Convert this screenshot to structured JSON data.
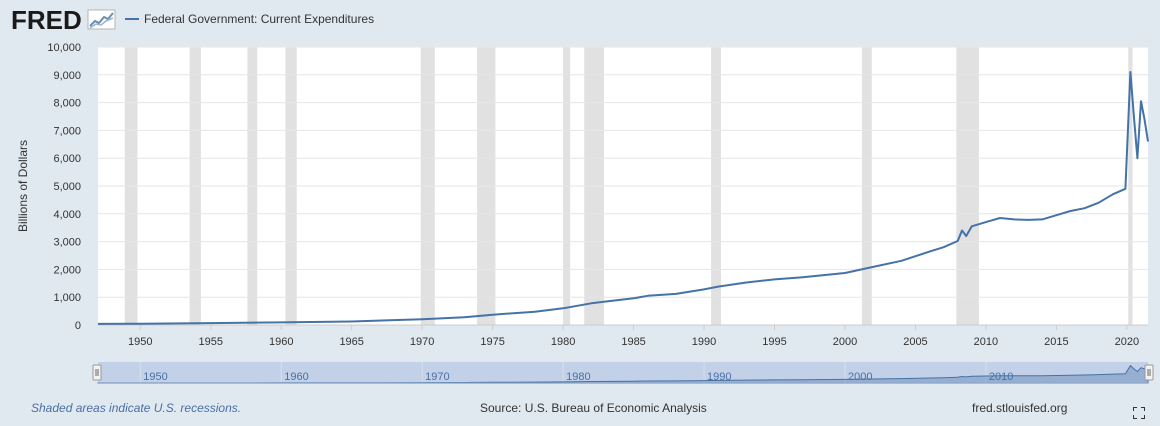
{
  "brand": {
    "logo_text": "FRED"
  },
  "colors": {
    "background": "#e1e9f0",
    "plot_background": "#ffffff",
    "series_line": "#4572a7",
    "recession_shade": "#e1e1e1",
    "navigator_fill": "#c2d0e8",
    "logo": "#1a1a1a"
  },
  "footer": {
    "note": "Shaded areas indicate U.S. recessions.",
    "source": "Source: U.S. Bureau of Economic Analysis",
    "site": "fred.stlouisfed.org"
  },
  "icons": {
    "fullscreen": "expand-arrows-icon",
    "logo_graph": "line-graph-icon"
  },
  "chart_data": {
    "type": "line",
    "title": "",
    "ylabel": "Billions of Dollars",
    "xlabel": "",
    "xlim": [
      1947,
      2021.5
    ],
    "ylim": [
      0,
      10000
    ],
    "grid": true,
    "legend_position": "top-left",
    "y_ticks": [
      "0",
      "1,000",
      "2,000",
      "3,000",
      "4,000",
      "5,000",
      "6,000",
      "7,000",
      "8,000",
      "9,000",
      "10,000"
    ],
    "x_ticks": [
      "1950",
      "1955",
      "1960",
      "1965",
      "1970",
      "1975",
      "1980",
      "1985",
      "1990",
      "1995",
      "2000",
      "2005",
      "2010",
      "2015",
      "2020"
    ],
    "navigator_ticks": [
      "1950",
      "1960",
      "1970",
      "1980",
      "1990",
      "2000",
      "2010"
    ],
    "recessions": [
      [
        1948.9,
        1949.8
      ],
      [
        1953.5,
        1954.3
      ],
      [
        1957.6,
        1958.3
      ],
      [
        1960.3,
        1961.1
      ],
      [
        1969.9,
        1970.9
      ],
      [
        1973.9,
        1975.2
      ],
      [
        1980.0,
        1980.5
      ],
      [
        1981.5,
        1982.9
      ],
      [
        1990.5,
        1991.2
      ],
      [
        2001.2,
        2001.9
      ],
      [
        2007.9,
        2009.5
      ],
      [
        2020.1,
        2020.4
      ]
    ],
    "series": [
      {
        "name": "Federal Government: Current Expenditures",
        "x": [
          1947,
          1950,
          1955,
          1960,
          1965,
          1970,
          1973,
          1975,
          1978,
          1980,
          1982,
          1985,
          1986,
          1988,
          1990,
          1991,
          1993,
          1995,
          1997,
          2000,
          2002,
          2004,
          2006,
          2007,
          2008,
          2008.3,
          2008.6,
          2009,
          2010,
          2011,
          2012,
          2013,
          2014,
          2015,
          2016,
          2017,
          2018,
          2019,
          2019.9,
          2020.25,
          2020.5,
          2020.75,
          2021,
          2021.25,
          2021.5
        ],
        "y": [
          40,
          45,
          70,
          95,
          125,
          210,
          280,
          370,
          480,
          600,
          780,
          960,
          1050,
          1120,
          1280,
          1380,
          1530,
          1640,
          1720,
          1870,
          2090,
          2310,
          2640,
          2800,
          3020,
          3400,
          3200,
          3550,
          3700,
          3850,
          3800,
          3780,
          3800,
          3950,
          4100,
          4200,
          4400,
          4700,
          4900,
          9100,
          7500,
          6000,
          8050,
          7400,
          6600
        ]
      }
    ]
  }
}
